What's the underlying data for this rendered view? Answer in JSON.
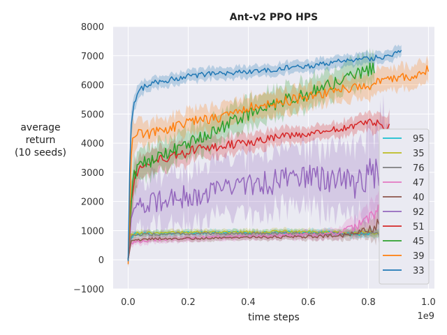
{
  "chart_data": {
    "type": "line",
    "title": "Ant-v2 PPO HPS",
    "xlabel": "time steps",
    "ylabel_lines": [
      "average",
      "return",
      "(10 seeds)"
    ],
    "x_multiplier_label": "1e9",
    "xlim": [
      -0.05,
      1.02
    ],
    "ylim": [
      -1000,
      8000
    ],
    "xticks": [
      0.0,
      0.2,
      0.4,
      0.6,
      0.8,
      1.0
    ],
    "xtick_labels": [
      "0.0",
      "0.2",
      "0.4",
      "0.6",
      "0.8",
      "1.0"
    ],
    "yticks": [
      -1000,
      0,
      1000,
      2000,
      3000,
      4000,
      5000,
      6000,
      7000,
      8000
    ],
    "ytick_labels": [
      "−1000",
      "0",
      "1000",
      "2000",
      "3000",
      "4000",
      "5000",
      "6000",
      "7000",
      "8000"
    ],
    "grid": true,
    "legend_position": "lower-right",
    "series": [
      {
        "name": "95",
        "color": "#17becf",
        "x": [
          0.0,
          0.01,
          0.02,
          0.05,
          0.1,
          0.2,
          0.3,
          0.4,
          0.5,
          0.6,
          0.7,
          0.8,
          0.87
        ],
        "y": [
          0,
          750,
          880,
          900,
          900,
          920,
          930,
          940,
          940,
          950,
          930,
          880,
          820
        ],
        "band": [
          80,
          100,
          100,
          100,
          100,
          100,
          100,
          100,
          100,
          100,
          120,
          150,
          150
        ]
      },
      {
        "name": "35",
        "color": "#bcbd22",
        "x": [
          0.0,
          0.01,
          0.02,
          0.05,
          0.1,
          0.2,
          0.3,
          0.4,
          0.5,
          0.6,
          0.7,
          0.8,
          0.87
        ],
        "y": [
          0,
          850,
          900,
          920,
          930,
          940,
          950,
          950,
          960,
          960,
          950,
          930,
          900
        ],
        "band": [
          80,
          100,
          100,
          100,
          100,
          100,
          100,
          100,
          100,
          100,
          100,
          120,
          120
        ]
      },
      {
        "name": "76",
        "color": "#7f7f7f",
        "x": [
          0.0,
          0.01,
          0.02,
          0.05,
          0.1,
          0.2,
          0.3,
          0.4,
          0.5,
          0.6,
          0.7,
          0.8,
          0.87
        ],
        "y": [
          0,
          800,
          850,
          870,
          880,
          890,
          900,
          900,
          910,
          910,
          900,
          900,
          880
        ],
        "band": [
          80,
          100,
          100,
          100,
          100,
          100,
          100,
          100,
          100,
          100,
          100,
          100,
          100
        ]
      },
      {
        "name": "47",
        "color": "#e377c2",
        "x": [
          0.0,
          0.01,
          0.02,
          0.05,
          0.1,
          0.2,
          0.3,
          0.4,
          0.5,
          0.6,
          0.7,
          0.75,
          0.8,
          0.85,
          0.87
        ],
        "y": [
          0,
          550,
          600,
          650,
          700,
          750,
          780,
          800,
          820,
          850,
          900,
          1100,
          1400,
          1900,
          2200
        ],
        "band": [
          100,
          120,
          120,
          120,
          120,
          120,
          120,
          120,
          130,
          150,
          200,
          300,
          400,
          600,
          700
        ]
      },
      {
        "name": "40",
        "color": "#8c564b",
        "x": [
          0.0,
          0.01,
          0.02,
          0.05,
          0.1,
          0.2,
          0.3,
          0.4,
          0.5,
          0.6,
          0.7,
          0.75,
          0.8,
          0.83,
          0.85,
          0.87
        ],
        "y": [
          0,
          650,
          680,
          700,
          720,
          730,
          740,
          760,
          780,
          800,
          820,
          900,
          1000,
          1200,
          1500,
          900
        ],
        "band": [
          80,
          100,
          100,
          100,
          100,
          100,
          100,
          100,
          110,
          120,
          150,
          200,
          300,
          500,
          800,
          300
        ]
      },
      {
        "name": "92",
        "color": "#9467bd",
        "x": [
          0.0,
          0.01,
          0.02,
          0.05,
          0.1,
          0.2,
          0.3,
          0.4,
          0.5,
          0.6,
          0.7,
          0.75,
          0.8,
          0.85,
          0.87
        ],
        "y": [
          0,
          1200,
          1600,
          1900,
          2000,
          2200,
          2400,
          2600,
          2700,
          2800,
          2700,
          2600,
          2800,
          3500,
          3200
        ],
        "band": [
          300,
          500,
          700,
          800,
          900,
          900,
          900,
          1000,
          1000,
          1000,
          1100,
          1200,
          1400,
          1800,
          1500
        ]
      },
      {
        "name": "51",
        "color": "#d62728",
        "x": [
          0.0,
          0.01,
          0.02,
          0.05,
          0.1,
          0.2,
          0.3,
          0.4,
          0.5,
          0.6,
          0.7,
          0.8,
          0.87
        ],
        "y": [
          0,
          2000,
          2800,
          3200,
          3400,
          3700,
          3900,
          4000,
          4200,
          4300,
          4500,
          4700,
          4600
        ],
        "band": [
          300,
          600,
          500,
          400,
          400,
          400,
          350,
          300,
          300,
          250,
          250,
          300,
          400
        ]
      },
      {
        "name": "45",
        "color": "#2ca02c",
        "x": [
          0.0,
          0.01,
          0.02,
          0.05,
          0.1,
          0.2,
          0.3,
          0.4,
          0.5,
          0.6,
          0.7,
          0.8,
          0.82
        ],
        "y": [
          0,
          2200,
          3000,
          3300,
          3500,
          4000,
          4500,
          5000,
          5400,
          5700,
          6100,
          6500,
          6600
        ],
        "band": [
          300,
          700,
          600,
          500,
          500,
          500,
          500,
          500,
          500,
          500,
          500,
          500,
          500
        ]
      },
      {
        "name": "39",
        "color": "#ff7f0e",
        "x": [
          0.0,
          0.01,
          0.02,
          0.05,
          0.1,
          0.2,
          0.3,
          0.4,
          0.5,
          0.6,
          0.7,
          0.8,
          0.9,
          1.0
        ],
        "y": [
          -150,
          3500,
          4400,
          4300,
          4400,
          4700,
          4900,
          5200,
          5400,
          5600,
          5800,
          6000,
          6200,
          6500
        ],
        "band": [
          100,
          800,
          500,
          400,
          400,
          400,
          400,
          400,
          400,
          400,
          400,
          400,
          400,
          400
        ]
      },
      {
        "name": "33",
        "color": "#1f77b4",
        "x": [
          0.0,
          0.005,
          0.01,
          0.02,
          0.04,
          0.06,
          0.1,
          0.15,
          0.2,
          0.3,
          0.4,
          0.5,
          0.6,
          0.7,
          0.8,
          0.88,
          0.91
        ],
        "y": [
          -50,
          3000,
          4800,
          5400,
          5800,
          6000,
          6100,
          6200,
          6300,
          6400,
          6450,
          6550,
          6650,
          6800,
          6900,
          7000,
          7250
        ],
        "band": [
          100,
          600,
          500,
          300,
          250,
          200,
          200,
          200,
          200,
          200,
          200,
          200,
          200,
          200,
          200,
          200,
          200
        ]
      }
    ]
  }
}
